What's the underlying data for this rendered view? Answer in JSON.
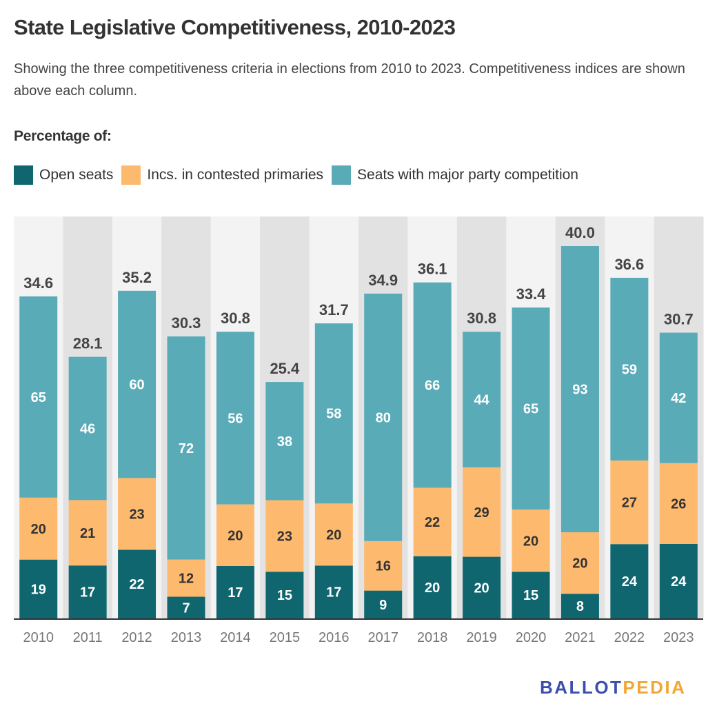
{
  "header": {
    "title": "State Legislative Competitiveness, 2010-2023",
    "subtitle": "Showing the three competitiveness criteria in elections from 2010 to 2023. Competitiveness indices are shown above each column."
  },
  "legend": {
    "title": "Percentage of:",
    "items": [
      {
        "label": "Open seats",
        "color": "#10666f"
      },
      {
        "label": "Incs. in contested primaries",
        "color": "#fdb96e"
      },
      {
        "label": "Seats with major party competition",
        "color": "#5aabb8"
      }
    ]
  },
  "logo": {
    "part1": "BALLOT",
    "part2": "PEDIA"
  },
  "chart_data": {
    "type": "bar",
    "stacked": true,
    "title": "State Legislative Competitiveness, 2010-2023",
    "subtitle": "Showing the three competitiveness criteria in elections from 2010 to 2023. Competitiveness indices are shown above each column.",
    "xlabel": "",
    "ylabel": "",
    "legend_title": "Percentage of:",
    "legend_position": "top-left",
    "grid": false,
    "categories": [
      "2010",
      "2011",
      "2012",
      "2013",
      "2014",
      "2015",
      "2016",
      "2017",
      "2018",
      "2019",
      "2020",
      "2021",
      "2022",
      "2023"
    ],
    "competitiveness_index": [
      34.6,
      28.1,
      35.2,
      30.3,
      30.8,
      25.4,
      31.7,
      34.9,
      36.1,
      30.8,
      33.4,
      40.0,
      36.6,
      30.7
    ],
    "index_range": [
      0,
      40
    ],
    "series": [
      {
        "name": "Open seats",
        "color": "#10666f",
        "label_color": "#ffffff",
        "values": [
          19,
          17,
          22,
          7,
          17,
          15,
          17,
          9,
          20,
          20,
          15,
          8,
          24,
          24
        ]
      },
      {
        "name": "Incs. in contested primaries",
        "color": "#fdb96e",
        "label_color": "#333333",
        "values": [
          20,
          21,
          23,
          12,
          20,
          23,
          20,
          16,
          22,
          29,
          20,
          20,
          27,
          26
        ]
      },
      {
        "name": "Seats with major party competition",
        "color": "#5aabb8",
        "label_color": "#ffffff",
        "values": [
          65,
          46,
          60,
          72,
          56,
          38,
          58,
          80,
          66,
          44,
          65,
          93,
          59,
          42
        ]
      }
    ],
    "note": "Each column's total height equals its competitiveness index (average of the three percentages); segments are proportional to each percentage."
  }
}
